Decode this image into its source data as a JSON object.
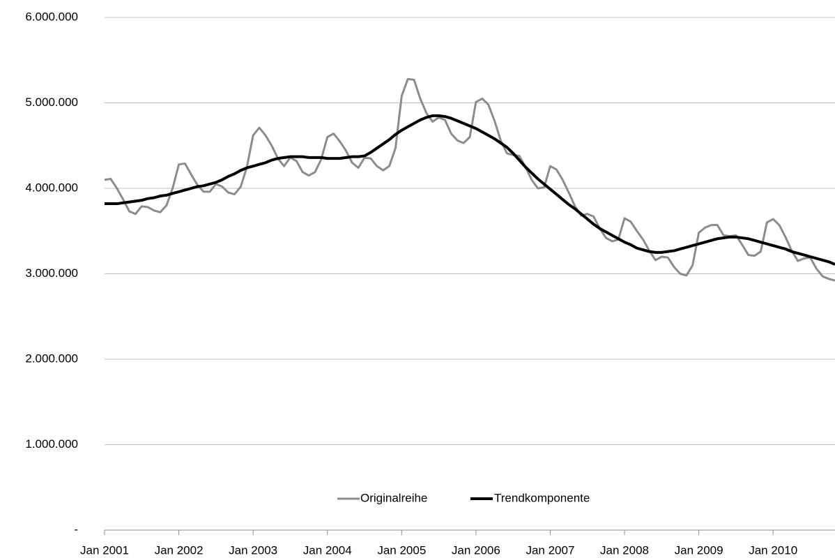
{
  "chart_data": {
    "type": "line",
    "categories": [
      "Jan 2001",
      null,
      null,
      null,
      null,
      null,
      null,
      null,
      null,
      null,
      null,
      null,
      "Jan 2002",
      null,
      null,
      null,
      null,
      null,
      null,
      null,
      null,
      null,
      null,
      null,
      "Jan 2003",
      null,
      null,
      null,
      null,
      null,
      null,
      null,
      null,
      null,
      null,
      null,
      "Jan 2004",
      null,
      null,
      null,
      null,
      null,
      null,
      null,
      null,
      null,
      null,
      null,
      "Jan 2005",
      null,
      null,
      null,
      null,
      null,
      null,
      null,
      null,
      null,
      null,
      null,
      "Jan 2006",
      null,
      null,
      null,
      null,
      null,
      null,
      null,
      null,
      null,
      null,
      null,
      "Jan 2007",
      null,
      null,
      null,
      null,
      null,
      null,
      null,
      null,
      null,
      null,
      null,
      "Jan 2008",
      null,
      null,
      null,
      null,
      null,
      null,
      null,
      null,
      null,
      null,
      null,
      "Jan 2009",
      null,
      null,
      null,
      null,
      null,
      null,
      null,
      null,
      null,
      null,
      null,
      "Jan 2010",
      null,
      null,
      null,
      null,
      null,
      null,
      null,
      null,
      null,
      null
    ],
    "series": [
      {
        "name": "Originalreihe",
        "color": "#8c8c8c",
        "width": 3,
        "values": [
          4100000,
          4110000,
          4000000,
          3870000,
          3730000,
          3700000,
          3790000,
          3780000,
          3740000,
          3720000,
          3800000,
          4000000,
          4280000,
          4290000,
          4160000,
          4040000,
          3960000,
          3960000,
          4050000,
          4020000,
          3950000,
          3930000,
          4020000,
          4250000,
          4620000,
          4710000,
          4620000,
          4500000,
          4350000,
          4260000,
          4360000,
          4320000,
          4190000,
          4150000,
          4190000,
          4340000,
          4600000,
          4640000,
          4550000,
          4440000,
          4300000,
          4240000,
          4360000,
          4350000,
          4260000,
          4210000,
          4260000,
          4470000,
          5080000,
          5280000,
          5270000,
          5050000,
          4880000,
          4780000,
          4830000,
          4800000,
          4640000,
          4560000,
          4530000,
          4600000,
          5010000,
          5050000,
          4980000,
          4790000,
          4560000,
          4410000,
          4390000,
          4380000,
          4250000,
          4100000,
          4000000,
          4010000,
          4260000,
          4220000,
          4100000,
          3950000,
          3790000,
          3680000,
          3700000,
          3670000,
          3530000,
          3420000,
          3380000,
          3400000,
          3650000,
          3610000,
          3500000,
          3400000,
          3270000,
          3160000,
          3200000,
          3190000,
          3080000,
          3000000,
          2980000,
          3100000,
          3480000,
          3540000,
          3570000,
          3570000,
          3450000,
          3440000,
          3450000,
          3340000,
          3220000,
          3210000,
          3260000,
          3600000,
          3640000,
          3570000,
          3430000,
          3270000,
          3150000,
          3180000,
          3190000,
          3060000,
          2970000,
          2940000,
          2920000
        ]
      },
      {
        "name": "Trendkomponente",
        "color": "#000000",
        "width": 4,
        "values": [
          3820000,
          3820000,
          3820000,
          3830000,
          3840000,
          3850000,
          3860000,
          3880000,
          3890000,
          3910000,
          3920000,
          3940000,
          3960000,
          3980000,
          4000000,
          4020000,
          4030000,
          4050000,
          4070000,
          4100000,
          4140000,
          4170000,
          4210000,
          4240000,
          4260000,
          4280000,
          4300000,
          4330000,
          4350000,
          4360000,
          4370000,
          4370000,
          4370000,
          4360000,
          4360000,
          4360000,
          4350000,
          4350000,
          4350000,
          4360000,
          4370000,
          4370000,
          4380000,
          4420000,
          4470000,
          4520000,
          4570000,
          4630000,
          4680000,
          4720000,
          4760000,
          4800000,
          4830000,
          4850000,
          4850000,
          4840000,
          4820000,
          4790000,
          4760000,
          4730000,
          4700000,
          4660000,
          4620000,
          4580000,
          4530000,
          4480000,
          4410000,
          4330000,
          4250000,
          4180000,
          4110000,
          4050000,
          3990000,
          3930000,
          3870000,
          3810000,
          3760000,
          3700000,
          3640000,
          3580000,
          3530000,
          3490000,
          3450000,
          3410000,
          3370000,
          3340000,
          3300000,
          3280000,
          3260000,
          3250000,
          3250000,
          3260000,
          3270000,
          3290000,
          3310000,
          3330000,
          3350000,
          3370000,
          3390000,
          3410000,
          3420000,
          3430000,
          3430000,
          3420000,
          3410000,
          3390000,
          3370000,
          3350000,
          3330000,
          3310000,
          3290000,
          3260000,
          3240000,
          3220000,
          3200000,
          3180000,
          3160000,
          3140000,
          3110000
        ]
      }
    ],
    "ylim": [
      0,
      6000000
    ],
    "yticks": [
      {
        "value": 0,
        "label": "-"
      },
      {
        "value": 1000000,
        "label": "1.000.000"
      },
      {
        "value": 2000000,
        "label": "2.000.000"
      },
      {
        "value": 3000000,
        "label": "3.000.000"
      },
      {
        "value": 4000000,
        "label": "4.000.000"
      },
      {
        "value": 5000000,
        "label": "5.000.000"
      },
      {
        "value": 6000000,
        "label": "6.000.000"
      }
    ],
    "grid": true,
    "legend": "bottom"
  }
}
